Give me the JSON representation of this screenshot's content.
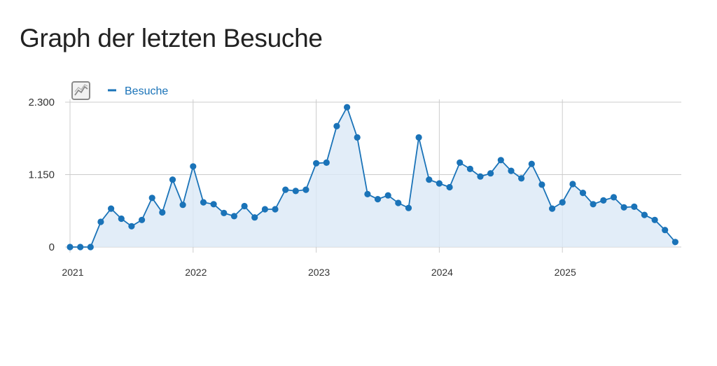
{
  "page": {
    "title": "Graph der letzten Besuche"
  },
  "chart_icon": "line-chart-icon",
  "colors": {
    "series": "#1a73b8",
    "area": "#dbe9f6",
    "grid": "#cccccc",
    "text": "#333333",
    "icon": "#8a8a8a"
  },
  "chart_data": {
    "type": "line",
    "title": "",
    "xlabel": "",
    "ylabel": "",
    "ylim": [
      0,
      2300
    ],
    "yticks": [
      0,
      1150,
      2300
    ],
    "ytick_labels": [
      "0",
      "1.150",
      "2.300"
    ],
    "xticks": [
      "2021",
      "2022",
      "2023",
      "2024",
      "2025"
    ],
    "legend": "top-left",
    "grid": true,
    "series": [
      {
        "name": "Besuche",
        "values": [
          0,
          0,
          0,
          400,
          610,
          450,
          330,
          430,
          780,
          550,
          1070,
          670,
          1280,
          710,
          680,
          540,
          490,
          650,
          470,
          600,
          600,
          910,
          890,
          910,
          1330,
          1340,
          1920,
          2220,
          1740,
          840,
          760,
          820,
          700,
          620,
          1740,
          1070,
          1010,
          950,
          1340,
          1240,
          1120,
          1170,
          1380,
          1210,
          1090,
          1320,
          990,
          610,
          710,
          1000,
          860,
          680,
          740,
          790,
          630,
          640,
          510,
          430,
          270,
          80
        ]
      }
    ]
  }
}
